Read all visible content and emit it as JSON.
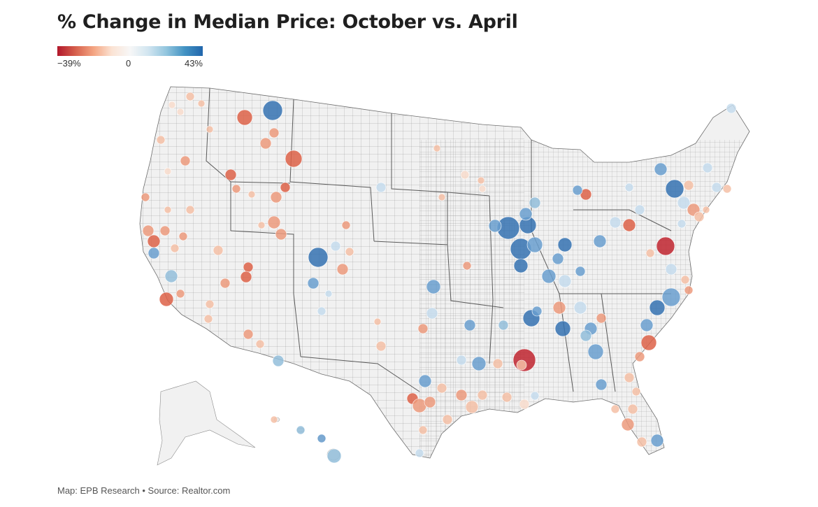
{
  "title": "% Change in Median Price: October vs. April",
  "legend": {
    "min_label": "−39%",
    "mid_label": "0",
    "max_label": "43%",
    "min_value": -39,
    "max_value": 43,
    "colors": [
      "#b2182b",
      "#d6604d",
      "#f4a582",
      "#fbe3d4",
      "#f7f7f7",
      "#d1e5f0",
      "#92c5de",
      "#4393c3",
      "#2166ac"
    ]
  },
  "map": {
    "region": "United States",
    "basemap": "county boundaries",
    "land_color": "#f2f2f2",
    "border_color": "#6e6e6e"
  },
  "footer": "Map: EPB Research • Source: Realtor.com"
}
